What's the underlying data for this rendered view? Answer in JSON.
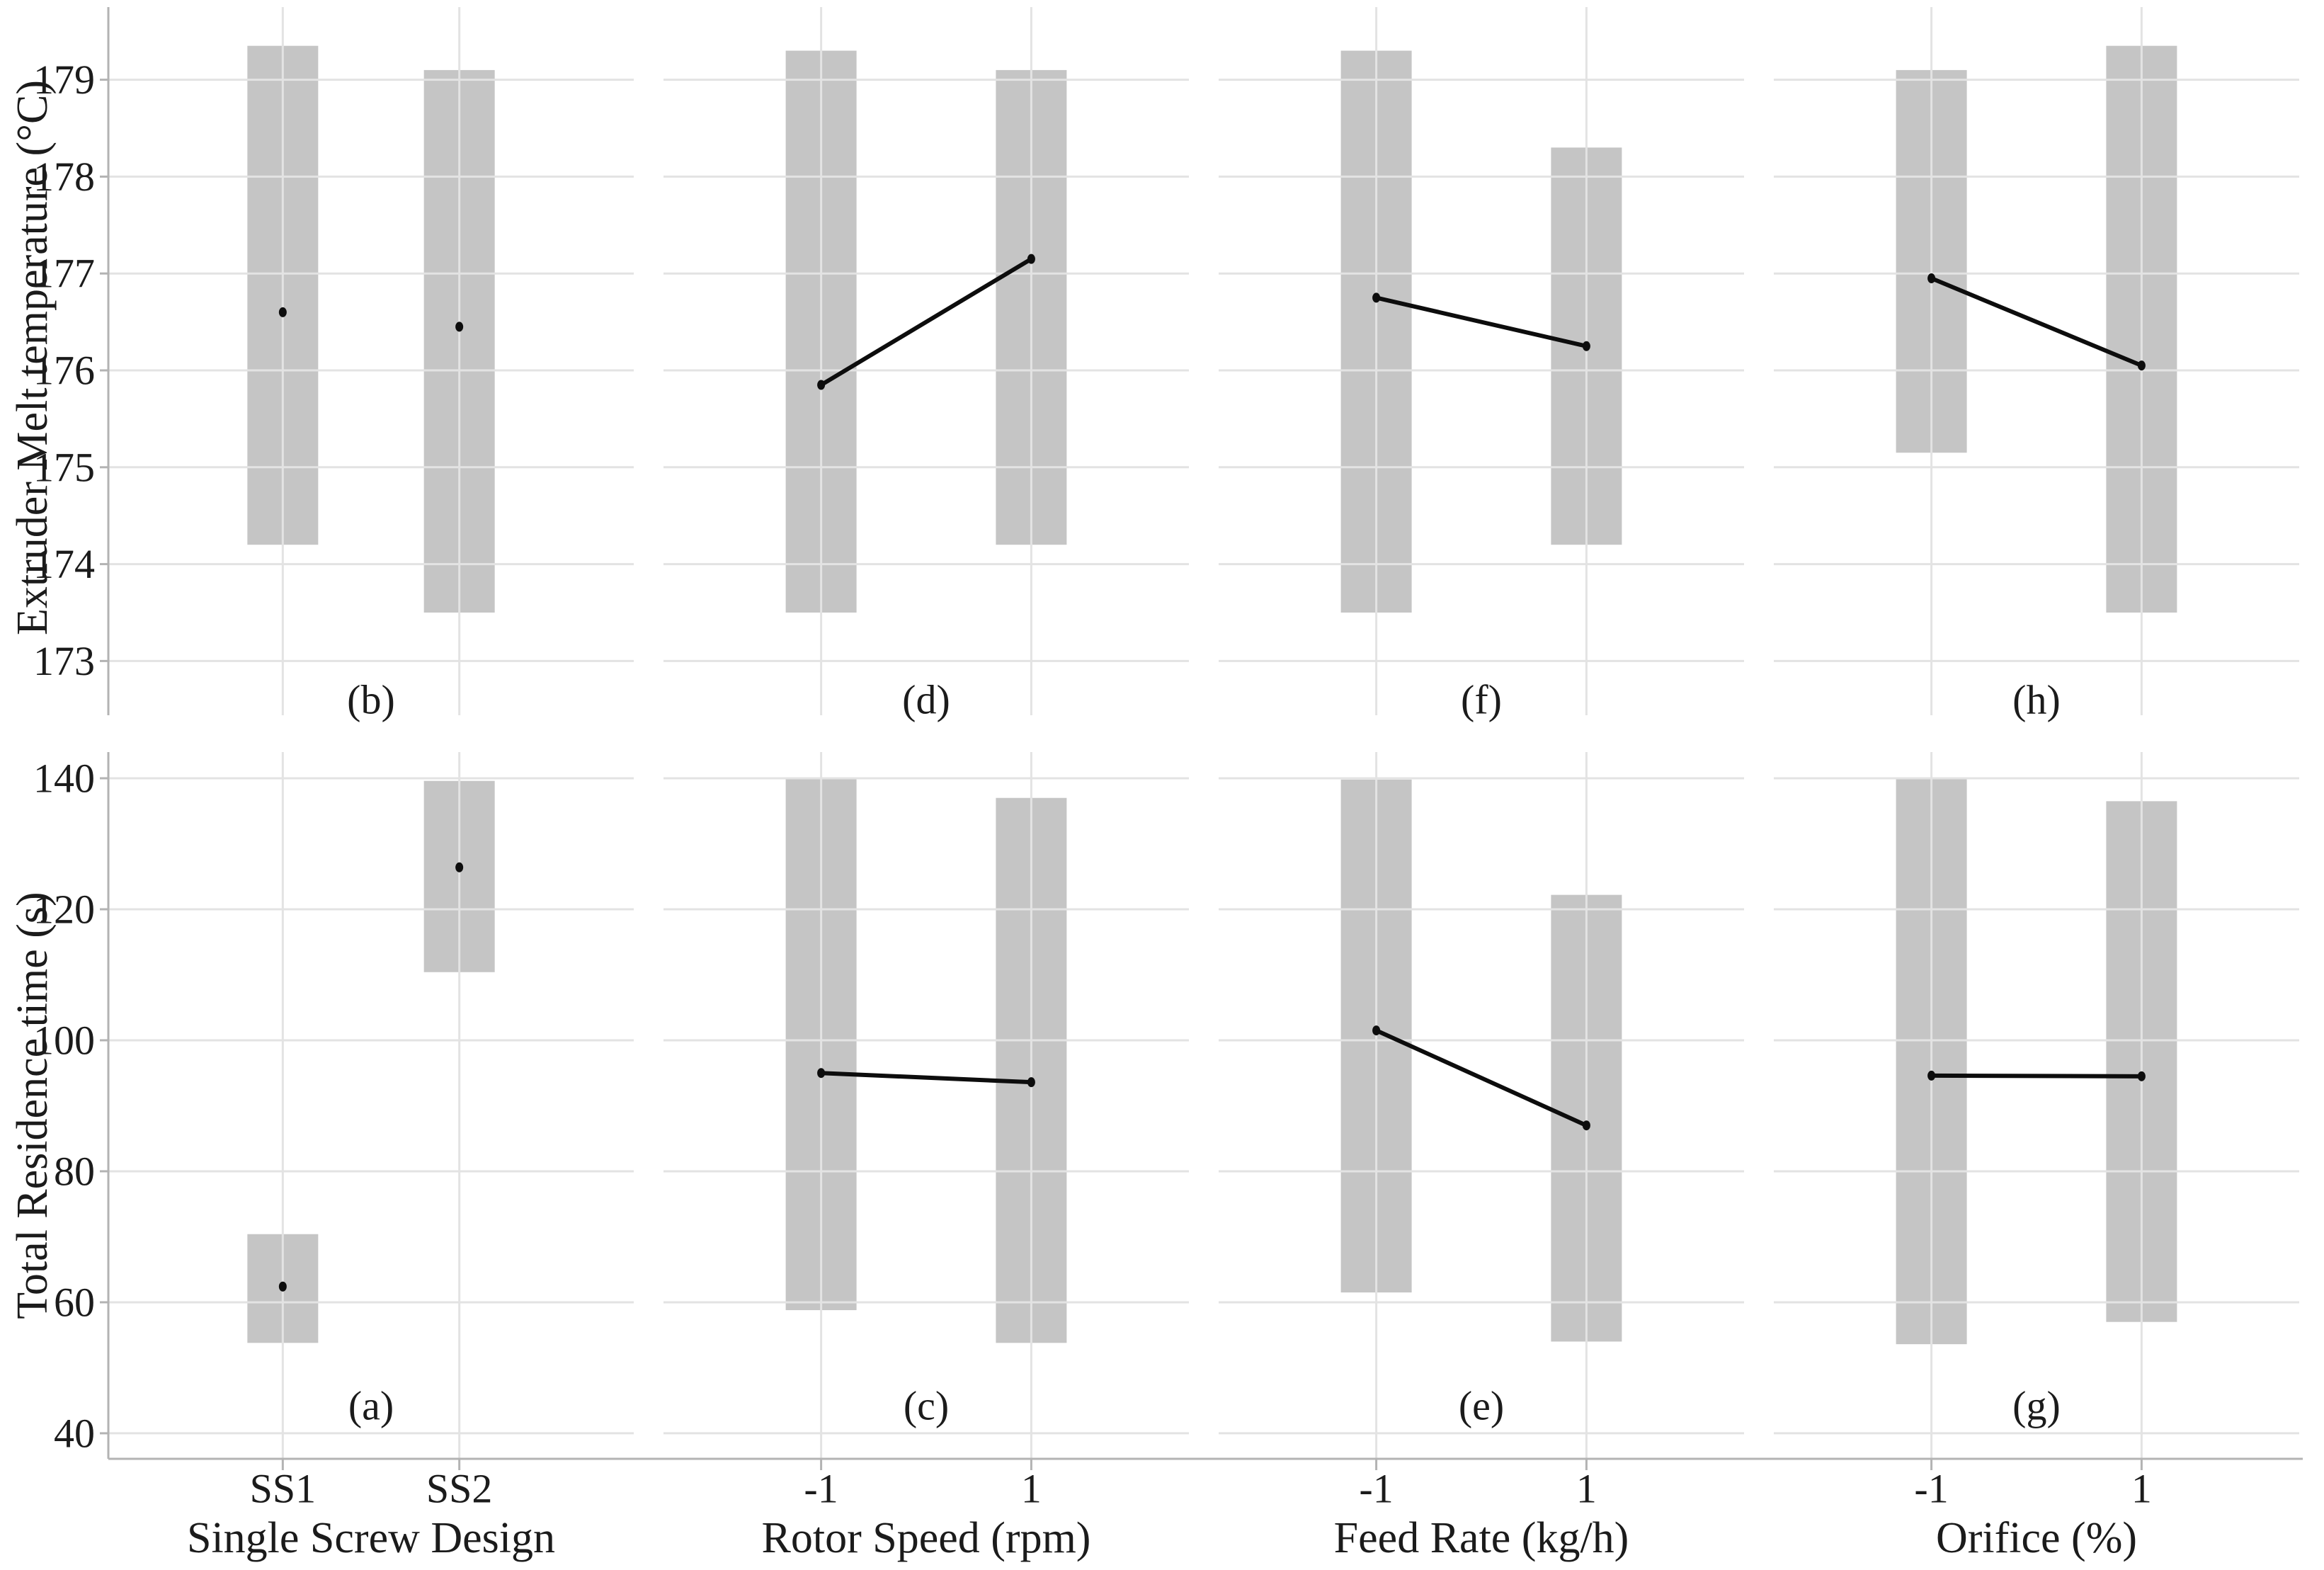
{
  "chart_data": {
    "type": "bar",
    "subtype": "main-effects-plot: gray range bars with mean points, means connected by line",
    "grid": true,
    "legend_position": "none",
    "rows": [
      {
        "ylabel": "Extruder Melt temperature (°C)",
        "ylim": [
          172.44,
          179.75
        ],
        "yticks": [
          179,
          178,
          177,
          176,
          175,
          174,
          173
        ]
      },
      {
        "ylabel": "Total Residence time (s)",
        "ylim": [
          36.1,
          144.0
        ],
        "yticks": [
          140,
          120,
          100,
          80,
          60,
          40
        ]
      }
    ],
    "columns": [
      {
        "xlabel": "Single Screw Design",
        "categories": [
          "SS1",
          "SS2"
        ]
      },
      {
        "xlabel": "Rotor Speed (rpm)",
        "categories": [
          "-1",
          "1"
        ]
      },
      {
        "xlabel": "Feed Rate (kg/h)",
        "categories": [
          "-1",
          "1"
        ]
      },
      {
        "xlabel": "Orifice (%)",
        "categories": [
          "-1",
          "1"
        ]
      }
    ],
    "panels": [
      {
        "label": "(b)",
        "row": 0,
        "col": 0,
        "connect": false,
        "bars": [
          [
            174.2,
            179.35
          ],
          [
            173.5,
            179.1
          ]
        ],
        "means": [
          176.6,
          176.45
        ]
      },
      {
        "label": "(d)",
        "row": 0,
        "col": 1,
        "connect": true,
        "bars": [
          [
            173.5,
            179.3
          ],
          [
            174.2,
            179.1
          ]
        ],
        "means": [
          175.85,
          177.15
        ]
      },
      {
        "label": "(f)",
        "row": 0,
        "col": 2,
        "connect": true,
        "bars": [
          [
            173.5,
            179.3
          ],
          [
            174.2,
            178.3
          ]
        ],
        "means": [
          176.75,
          176.25
        ]
      },
      {
        "label": "(h)",
        "row": 0,
        "col": 3,
        "connect": true,
        "bars": [
          [
            175.15,
            179.1
          ],
          [
            173.5,
            179.35
          ]
        ],
        "means": [
          176.95,
          176.05
        ]
      },
      {
        "label": "(a)",
        "row": 1,
        "col": 0,
        "connect": false,
        "bars": [
          [
            53.8,
            70.4
          ],
          [
            110.4,
            139.6
          ]
        ],
        "means": [
          62.4,
          126.4
        ]
      },
      {
        "label": "(c)",
        "row": 1,
        "col": 1,
        "connect": true,
        "bars": [
          [
            58.8,
            140.0
          ],
          [
            53.8,
            137.0
          ]
        ],
        "means": [
          95.0,
          93.6
        ]
      },
      {
        "label": "(e)",
        "row": 1,
        "col": 2,
        "connect": true,
        "bars": [
          [
            61.5,
            139.8
          ],
          [
            54.0,
            122.2
          ]
        ],
        "means": [
          101.5,
          87.0
        ]
      },
      {
        "label": "(g)",
        "row": 1,
        "col": 3,
        "connect": true,
        "bars": [
          [
            53.6,
            139.9
          ],
          [
            57.0,
            136.5
          ]
        ],
        "means": [
          94.6,
          94.5
        ]
      }
    ],
    "style": {
      "bar_color": "#c5c5c5",
      "grid_color": "#e3e3e3",
      "axis_color": "#b3b3b3",
      "point_color": "#0d0d0d",
      "line_color": "#0d0d0d",
      "text_color": "#1b1b1b",
      "background": "#ffffff"
    }
  }
}
